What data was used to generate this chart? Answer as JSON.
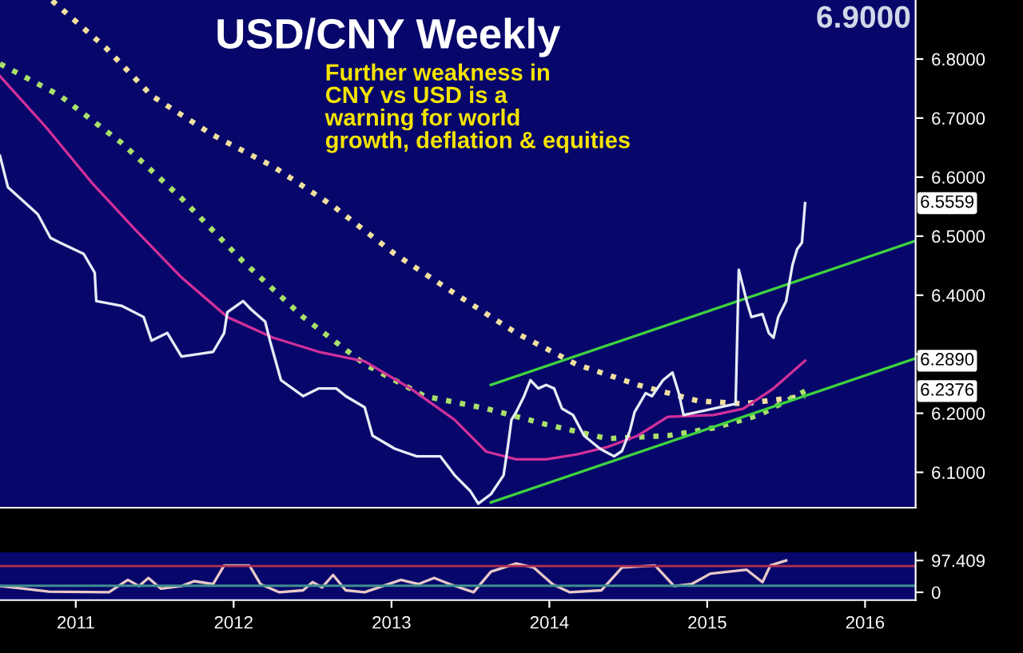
{
  "chart_data": [
    {
      "type": "line",
      "title": "USD/CNY Weekly",
      "subtitle": "Further weakness in\nCNY vs USD is a\nwarning for world\ngrowth, deflation & equities",
      "xlim": [
        2011.02,
        2016.82
      ],
      "ylim": [
        6.04,
        6.9
      ],
      "yticks": [
        {
          "value": 6.1,
          "label": "6.1000"
        },
        {
          "value": 6.2,
          "label": "6.2000"
        },
        {
          "value": 6.3,
          "label": null
        },
        {
          "value": 6.4,
          "label": "6.4000"
        },
        {
          "value": 6.5,
          "label": "6.5000"
        },
        {
          "value": 6.6,
          "label": "6.6000"
        },
        {
          "value": 6.7,
          "label": "6.7000"
        },
        {
          "value": 6.8,
          "label": "6.8000"
        }
      ],
      "tick_labels": "y",
      "grid": false,
      "legend": false,
      "series": [
        {
          "color": "#f0e0a0",
          "line_style": "dotted",
          "x": [
            2011.35,
            2011.69,
            2011.98,
            2012.37,
            2012.75,
            2013.13,
            2013.52,
            2013.9,
            2014.29,
            2014.67,
            2015.06,
            2015.44,
            2015.73,
            2016.12
          ],
          "values": [
            6.899,
            6.819,
            6.738,
            6.671,
            6.618,
            6.551,
            6.47,
            6.403,
            6.336,
            6.283,
            6.248,
            6.221,
            6.216,
            6.229
          ]
        },
        {
          "color": "#a8e06a",
          "line_style": "dotted",
          "x": [
            2011.02,
            2011.4,
            2011.79,
            2012.17,
            2012.56,
            2012.94,
            2013.33,
            2013.71,
            2014.1,
            2014.48,
            2014.87,
            2015.25,
            2015.54,
            2015.83,
            2016.12
          ],
          "values": [
            6.792,
            6.738,
            6.658,
            6.564,
            6.457,
            6.363,
            6.283,
            6.229,
            6.208,
            6.181,
            6.157,
            6.162,
            6.175,
            6.197,
            6.2376
          ]
        },
        {
          "color": "#d0309a",
          "line_style": "solid",
          "x": [
            2011.02,
            2011.31,
            2011.6,
            2011.88,
            2012.17,
            2012.46,
            2012.75,
            2013.04,
            2013.33,
            2013.62,
            2013.9,
            2014.1,
            2014.29,
            2014.48,
            2014.67,
            2014.87,
            2015.06,
            2015.25,
            2015.54,
            2015.73,
            2015.92,
            2016.12
          ],
          "values": [
            6.771,
            6.685,
            6.591,
            6.51,
            6.43,
            6.363,
            6.328,
            6.304,
            6.288,
            6.242,
            6.189,
            6.135,
            6.122,
            6.122,
            6.13,
            6.143,
            6.162,
            6.194,
            6.197,
            6.208,
            6.242,
            6.289
          ]
        },
        {
          "color": "#3fd23f",
          "line_style": "solid",
          "x": [
            2014.13,
            2016.82
          ],
          "values": [
            6.248,
            6.492
          ]
        },
        {
          "color": "#3fd23f",
          "line_style": "solid",
          "x": [
            2014.13,
            2016.82
          ],
          "values": [
            6.049,
            6.293
          ]
        },
        {
          "color": "#e6ecf5",
          "line_style": "solid",
          "x": [
            2011.02,
            2011.07,
            2011.26,
            2011.34,
            2011.4,
            2011.55,
            2011.62,
            2011.63,
            2011.79,
            2011.93,
            2011.98,
            2012.08,
            2012.17,
            2012.37,
            2012.44,
            2012.46,
            2012.56,
            2012.61,
            2012.7,
            2012.73,
            2012.8,
            2012.94,
            2013.04,
            2013.15,
            2013.21,
            2013.33,
            2013.38,
            2013.52,
            2013.66,
            2013.81,
            2013.9,
            2014.0,
            2014.05,
            2014.13,
            2014.21,
            2014.24,
            2014.26,
            2014.29,
            2014.34,
            2014.38,
            2014.43,
            2014.48,
            2014.53,
            2014.58,
            2014.65,
            2014.72,
            2014.82,
            2014.91,
            2014.96,
            2015.01,
            2015.04,
            2015.11,
            2015.15,
            2015.22,
            2015.28,
            2015.32,
            2015.35,
            2015.44,
            2015.54,
            2015.68,
            2015.7,
            2015.75,
            2015.78,
            2015.85,
            2015.89,
            2015.92,
            2015.95,
            2016.0,
            2016.04,
            2016.07,
            2016.1,
            2016.12
          ],
          "values": [
            6.636,
            6.583,
            6.537,
            6.497,
            6.489,
            6.47,
            6.438,
            6.39,
            6.382,
            6.363,
            6.323,
            6.336,
            6.296,
            6.304,
            6.336,
            6.371,
            6.39,
            6.376,
            6.355,
            6.323,
            6.256,
            6.229,
            6.242,
            6.242,
            6.229,
            6.21,
            6.162,
            6.14,
            6.127,
            6.127,
            6.095,
            6.068,
            6.047,
            6.063,
            6.095,
            6.149,
            6.189,
            6.202,
            6.229,
            6.256,
            6.242,
            6.248,
            6.242,
            6.208,
            6.197,
            6.162,
            6.14,
            6.127,
            6.136,
            6.17,
            6.202,
            6.234,
            6.229,
            6.256,
            6.269,
            6.234,
            6.197,
            6.202,
            6.208,
            6.216,
            6.443,
            6.39,
            6.363,
            6.368,
            6.336,
            6.328,
            6.363,
            6.39,
            6.451,
            6.478,
            6.489,
            6.5559
          ]
        }
      ],
      "annotations": [
        "6.9000",
        {
          "text": "6.5559",
          "y": 6.5559
        },
        {
          "text": "6.2890",
          "y": 6.289
        },
        {
          "text": "6.2376",
          "y": 6.2376
        }
      ]
    },
    {
      "type": "line",
      "xlim": [
        2011.02,
        2016.82
      ],
      "ylim": [
        -24,
        122
      ],
      "xticks": [
        {
          "value": 2011.5,
          "label": "2011"
        },
        {
          "value": 2012.5,
          "label": "2012"
        },
        {
          "value": 2013.5,
          "label": "2013"
        },
        {
          "value": 2014.5,
          "label": "2014"
        },
        {
          "value": 2015.5,
          "label": "2015"
        },
        {
          "value": 2016.5,
          "label": "2016"
        }
      ],
      "yticks": [
        0,
        {
          "value": 97.409,
          "label": "97.409"
        }
      ],
      "grid": false,
      "legend": false,
      "ref_lines": [
        {
          "axis": "y",
          "value": 80,
          "color": "#b03050"
        },
        {
          "axis": "y",
          "value": 20,
          "color": "#3f8f8f"
        }
      ],
      "series": [
        {
          "color": "#e8c8c8",
          "line_style": "solid",
          "x": [
            2011.02,
            2011.17,
            2011.33,
            2011.71,
            2011.83,
            2011.9,
            2011.96,
            2012.04,
            2012.17,
            2012.25,
            2012.37,
            2012.44,
            2012.6,
            2012.67,
            2012.79,
            2012.94,
            2013.0,
            2013.06,
            2013.13,
            2013.21,
            2013.33,
            2013.56,
            2013.67,
            2013.77,
            2013.87,
            2014.02,
            2014.13,
            2014.29,
            2014.4,
            2014.52,
            2014.63,
            2014.83,
            2014.96,
            2015.17,
            2015.29,
            2015.4,
            2015.52,
            2015.75,
            2015.85,
            2015.9,
            2016.0
          ],
          "values": [
            19,
            11,
            2,
            0,
            38,
            19,
            44,
            11,
            19,
            34,
            25,
            82,
            82,
            25,
            0,
            6,
            31,
            15,
            53,
            6,
            0,
            38,
            25,
            44,
            25,
            0,
            63,
            88,
            76,
            25,
            0,
            6,
            76,
            82,
            19,
            25,
            57,
            69,
            31,
            82,
            97.409
          ]
        }
      ]
    }
  ]
}
